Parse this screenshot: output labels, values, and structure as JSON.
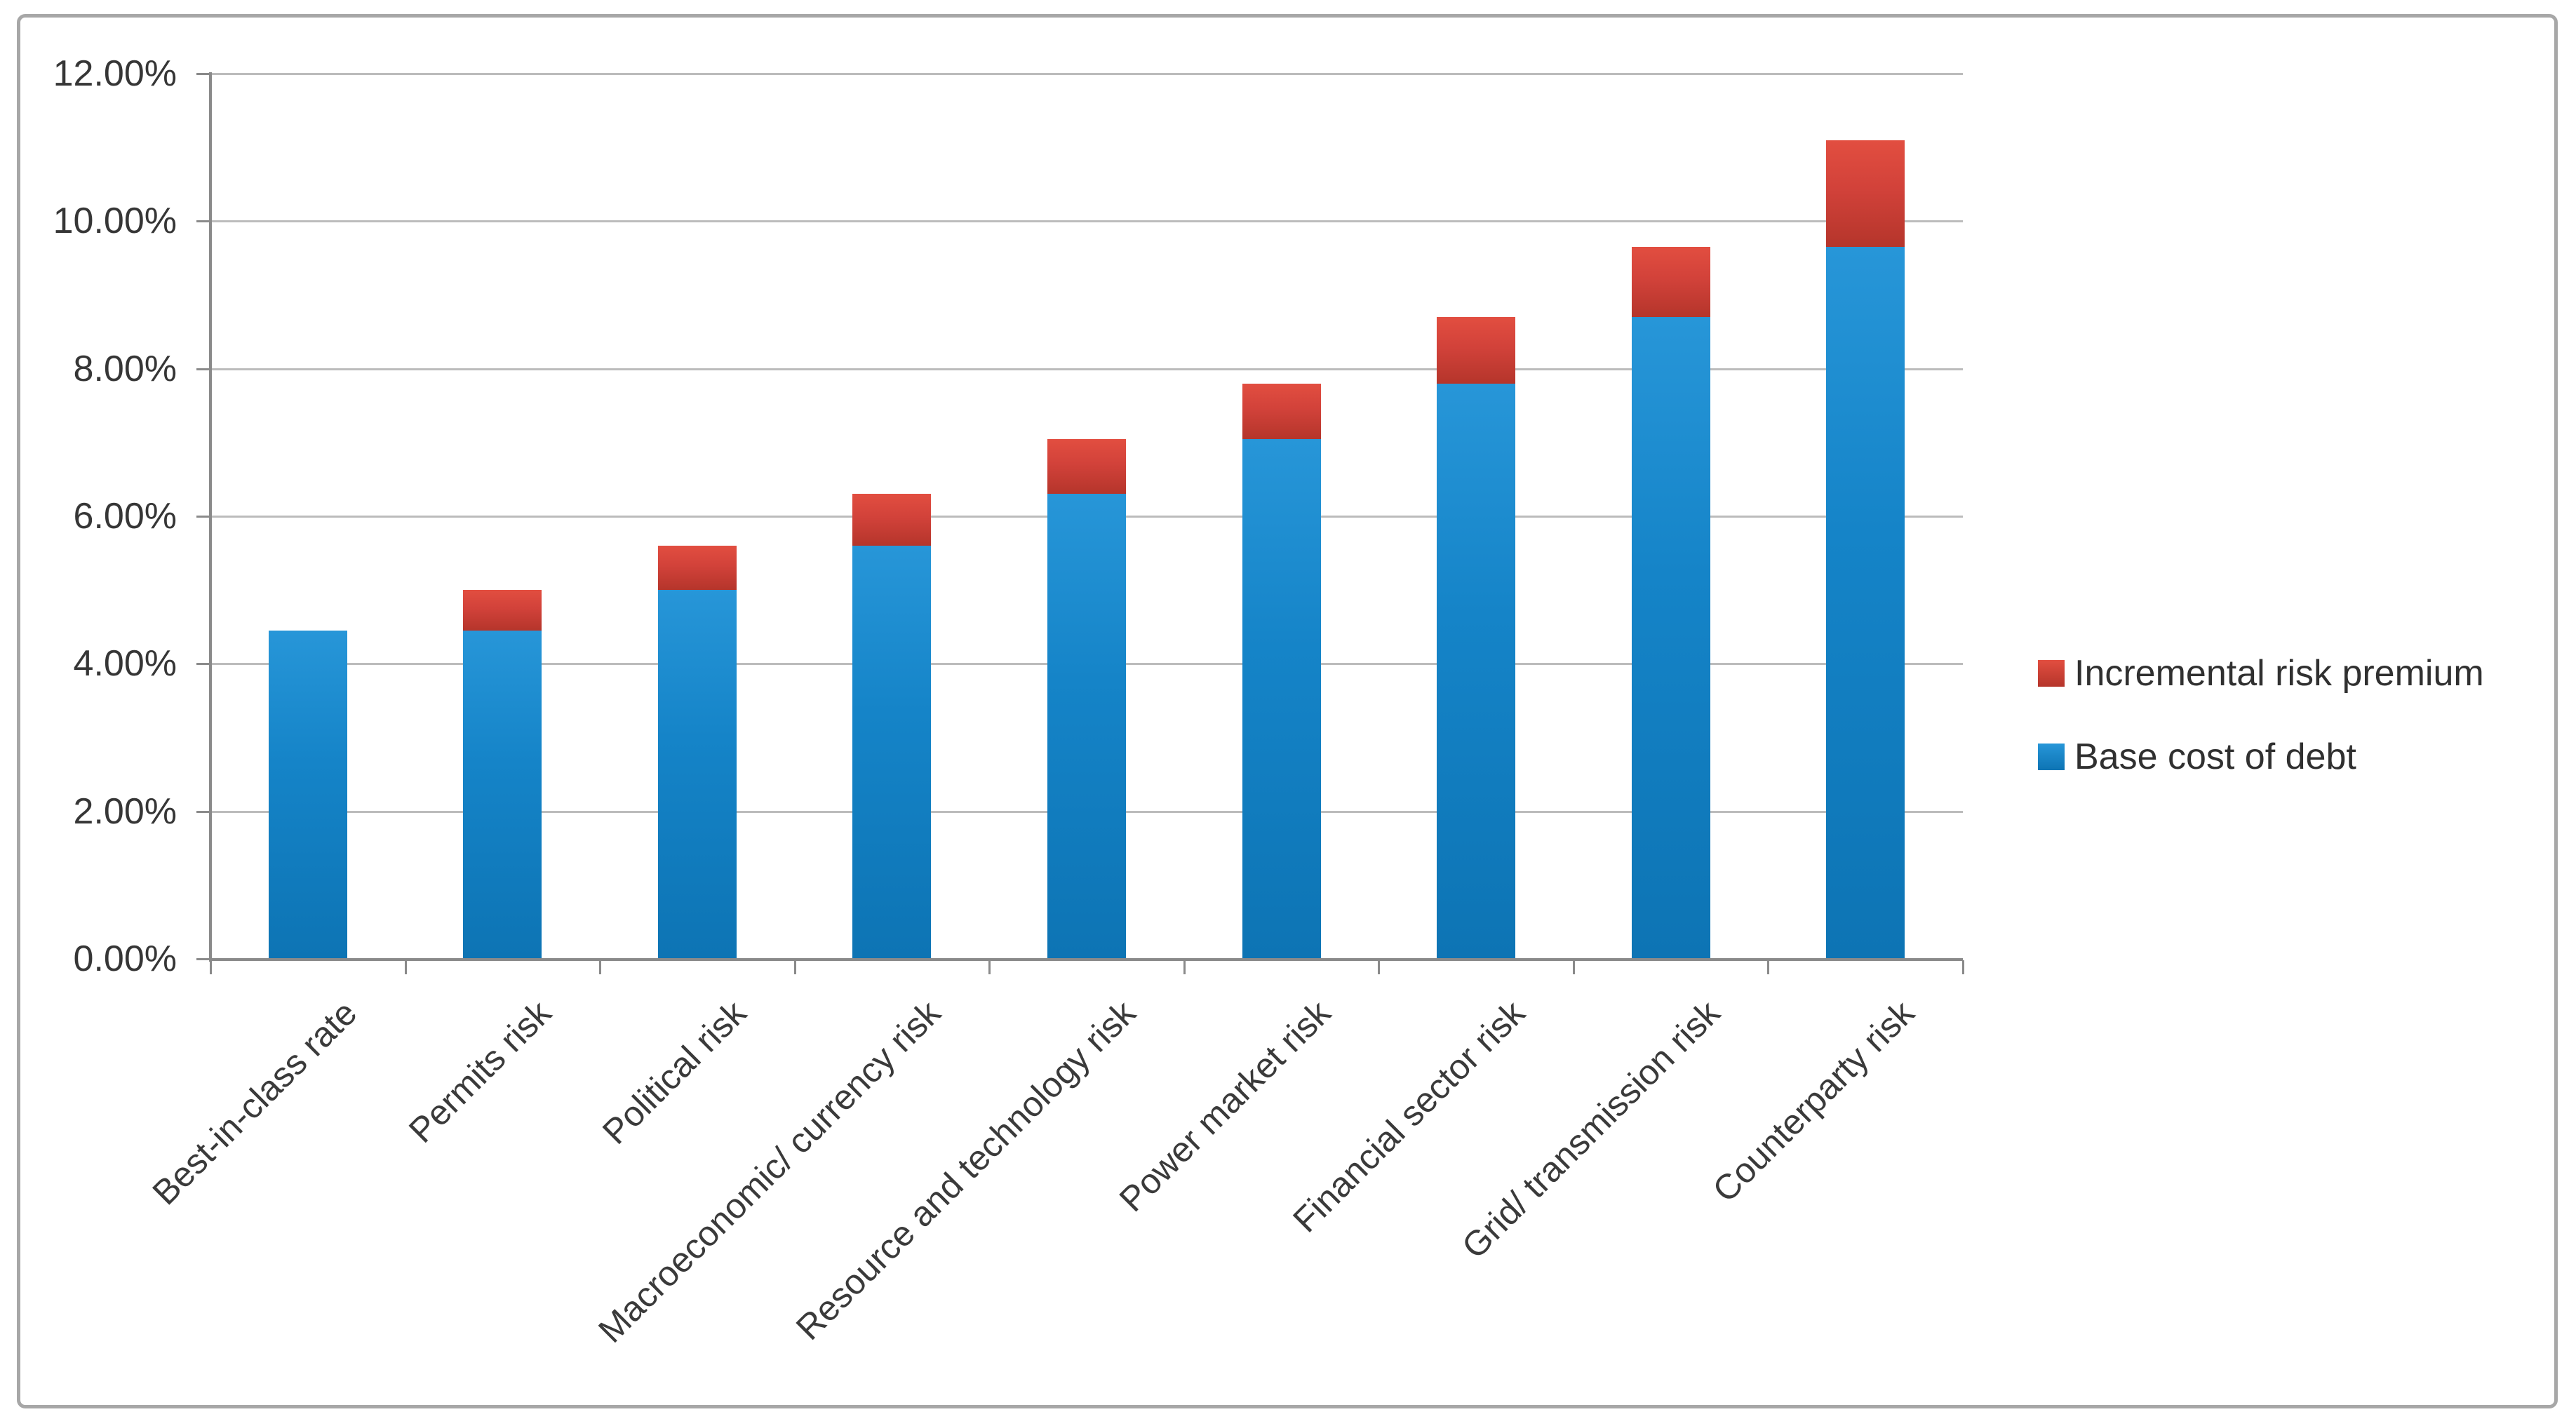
{
  "chart_data": {
    "type": "bar",
    "stacked": true,
    "title": "",
    "xlabel": "",
    "ylabel": "",
    "categories": [
      "Best-in-class rate",
      "Permits risk",
      "Political risk",
      "Macroeconomic/ currency risk",
      "Resource and technology risk",
      "Power market risk",
      "Financial sector risk",
      "Grid/ transmission risk",
      "Counterparty risk"
    ],
    "series": [
      {
        "name": "Base cost of debt",
        "color": "#1584c8",
        "values": [
          4.45,
          4.45,
          5.0,
          5.6,
          6.3,
          7.05,
          7.8,
          8.7,
          9.65
        ]
      },
      {
        "name": "Incremental risk premium",
        "color": "#d2423a",
        "values": [
          0,
          0.55,
          0.6,
          0.7,
          0.75,
          0.75,
          0.9,
          0.95,
          1.45
        ]
      }
    ],
    "totals": [
      4.45,
      5.0,
      5.6,
      6.3,
      7.05,
      7.8,
      8.7,
      9.65,
      11.1
    ],
    "y_axis": {
      "min": 0,
      "max": 12,
      "step": 2,
      "unit": "%",
      "tick_labels": [
        "0.00%",
        "2.00%",
        "4.00%",
        "6.00%",
        "8.00%",
        "10.00%",
        "12.00%"
      ]
    },
    "grid": true,
    "legend": {
      "position": "right",
      "entries": [
        "Incremental risk premium",
        "Base cost of debt"
      ]
    },
    "colors": {
      "base_bar": "#1584c8",
      "base_bar_light": "#2796d8",
      "base_bar_dark": "#0d74b4",
      "premium_bar": "#d2423a",
      "premium_bar_light": "#e24e40",
      "premium_bar_dark": "#b5352b",
      "gridline": "#bcbcbc",
      "axis": "#8a8a8a",
      "text": "#3a3a3a",
      "frame_border": "#a7a7a7",
      "background": "#ffffff"
    }
  }
}
